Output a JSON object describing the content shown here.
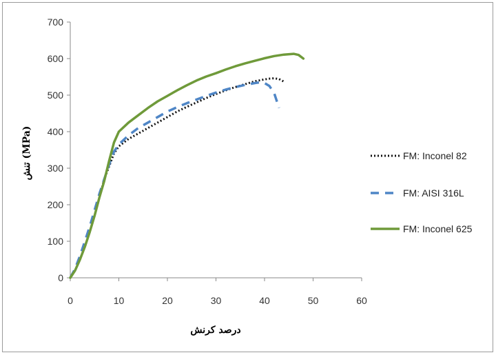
{
  "chart_data": {
    "type": "line",
    "title": "",
    "xlabel": "درصد کرنش",
    "ylabel": "تنش (MPa)",
    "xlim": [
      0,
      60
    ],
    "ylim": [
      0,
      700
    ],
    "x_ticks": [
      "0",
      "10",
      "20",
      "30",
      "40",
      "50",
      "60"
    ],
    "y_ticks": [
      "0",
      "100",
      "200",
      "300",
      "400",
      "500",
      "600",
      "700"
    ],
    "grid": false,
    "legend_position": "right",
    "series": [
      {
        "name": "FM: Inconel 82",
        "color": "#111111",
        "style": "dotted",
        "points": [
          [
            0,
            0
          ],
          [
            1,
            20
          ],
          [
            2,
            50
          ],
          [
            3,
            85
          ],
          [
            4,
            125
          ],
          [
            5,
            170
          ],
          [
            6,
            220
          ],
          [
            7,
            270
          ],
          [
            8,
            305
          ],
          [
            9,
            340
          ],
          [
            10,
            360
          ],
          [
            12,
            380
          ],
          [
            14,
            395
          ],
          [
            16,
            410
          ],
          [
            18,
            425
          ],
          [
            20,
            440
          ],
          [
            22,
            455
          ],
          [
            24,
            468
          ],
          [
            26,
            480
          ],
          [
            28,
            492
          ],
          [
            30,
            503
          ],
          [
            32,
            513
          ],
          [
            34,
            522
          ],
          [
            36,
            530
          ],
          [
            38,
            538
          ],
          [
            40,
            543
          ],
          [
            41,
            545
          ],
          [
            42,
            546
          ],
          [
            43,
            544
          ],
          [
            44,
            537
          ]
        ]
      },
      {
        "name": "FM: AISI 316L",
        "color": "#4f86c6",
        "style": "dashed",
        "points": [
          [
            0,
            0
          ],
          [
            1,
            25
          ],
          [
            2,
            60
          ],
          [
            3,
            100
          ],
          [
            4,
            140
          ],
          [
            5,
            185
          ],
          [
            6,
            230
          ],
          [
            7,
            270
          ],
          [
            8,
            310
          ],
          [
            9,
            345
          ],
          [
            10,
            365
          ],
          [
            12,
            390
          ],
          [
            14,
            410
          ],
          [
            16,
            425
          ],
          [
            18,
            440
          ],
          [
            20,
            455
          ],
          [
            22,
            467
          ],
          [
            24,
            478
          ],
          [
            26,
            488
          ],
          [
            28,
            498
          ],
          [
            30,
            507
          ],
          [
            32,
            515
          ],
          [
            34,
            522
          ],
          [
            36,
            528
          ],
          [
            38,
            533
          ],
          [
            39,
            535
          ],
          [
            40,
            533
          ],
          [
            41,
            525
          ],
          [
            42,
            505
          ],
          [
            43,
            465
          ]
        ]
      },
      {
        "name": "FM: Inconel 625",
        "color": "#6f9a3a",
        "style": "solid",
        "points": [
          [
            0,
            0
          ],
          [
            1,
            20
          ],
          [
            2,
            50
          ],
          [
            3,
            85
          ],
          [
            4,
            125
          ],
          [
            5,
            170
          ],
          [
            6,
            220
          ],
          [
            7,
            265
          ],
          [
            8,
            320
          ],
          [
            9,
            370
          ],
          [
            10,
            400
          ],
          [
            12,
            425
          ],
          [
            14,
            445
          ],
          [
            16,
            465
          ],
          [
            18,
            483
          ],
          [
            20,
            498
          ],
          [
            22,
            513
          ],
          [
            24,
            527
          ],
          [
            26,
            540
          ],
          [
            28,
            551
          ],
          [
            30,
            560
          ],
          [
            32,
            570
          ],
          [
            34,
            579
          ],
          [
            36,
            587
          ],
          [
            38,
            594
          ],
          [
            40,
            601
          ],
          [
            42,
            607
          ],
          [
            44,
            611
          ],
          [
            46,
            613
          ],
          [
            47,
            610
          ],
          [
            48,
            600
          ]
        ]
      }
    ]
  }
}
